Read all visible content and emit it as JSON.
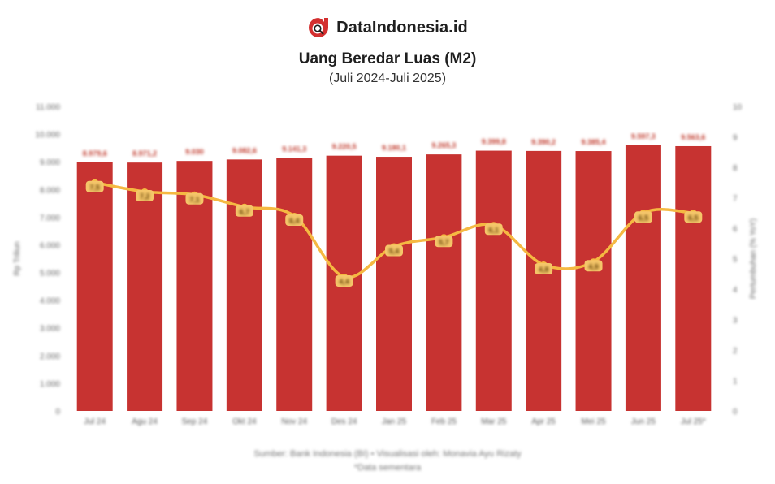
{
  "brand": {
    "name": "DataIndonesia.id",
    "logo_icon": "dataindonesia-logo-icon",
    "logo_color": "#d32f2f"
  },
  "chart_data": {
    "type": "bar",
    "title": "Uang Beredar Luas (M2)",
    "subtitle": "(Juli 2024-Juli 2025)",
    "categories": [
      "Jul 24",
      "Agu 24",
      "Sep 24",
      "Okt 24",
      "Nov 24",
      "Des 24",
      "Jan 25",
      "Feb 25",
      "Mar 25",
      "Apr 25",
      "Mei 25",
      "Jun 25",
      "Jul 25*"
    ],
    "series": [
      {
        "kind": "bar",
        "axis": "left",
        "color": "#c73331",
        "values": [
          8979.6,
          8971.2,
          9030,
          9082.6,
          9141.3,
          9220.5,
          9180.1,
          9265.3,
          9399.8,
          9390.2,
          9385.4,
          9597.3,
          9563.6
        ],
        "data_labels": [
          "8.979,6",
          "8.971,2",
          "9.030",
          "9.082,6",
          "9.141,3",
          "9.220,5",
          "9.180,1",
          "9.265,3",
          "9.399,8",
          "9.390,2",
          "9.385,4",
          "9.597,3",
          "9.563,6"
        ]
      },
      {
        "kind": "line",
        "axis": "right",
        "color": "#f5b942",
        "values": [
          7.5,
          7.2,
          7.1,
          6.7,
          6.4,
          4.4,
          5.4,
          5.7,
          6.1,
          4.8,
          4.9,
          6.5,
          6.5
        ],
        "data_labels": [
          "7,5",
          "7,2",
          "7,1",
          "6,7",
          "6,4",
          "4,4",
          "5,4",
          "5,7",
          "6,1",
          "4,8",
          "4,9",
          "6,5",
          "6,5"
        ]
      }
    ],
    "yleft": {
      "label": "Rp Triliun",
      "ylim": [
        0,
        11000
      ],
      "ticks": [
        "0",
        "1.000",
        "2.000",
        "3.000",
        "4.000",
        "5.000",
        "6.000",
        "7.000",
        "8.000",
        "9.000",
        "10.000",
        "11.000"
      ]
    },
    "yright": {
      "label": "Pertumbuhan (% YoY)",
      "ylim": [
        0,
        10
      ],
      "ticks": [
        "0",
        "1",
        "2",
        "3",
        "4",
        "5",
        "6",
        "7",
        "8",
        "9",
        "10"
      ]
    },
    "grid": false,
    "legend": "none"
  },
  "footer": {
    "source": "Sumber: Bank Indonesia (BI) • Visualisasi oleh: Monavia Ayu Rizaty",
    "note": "*Data sementara"
  }
}
